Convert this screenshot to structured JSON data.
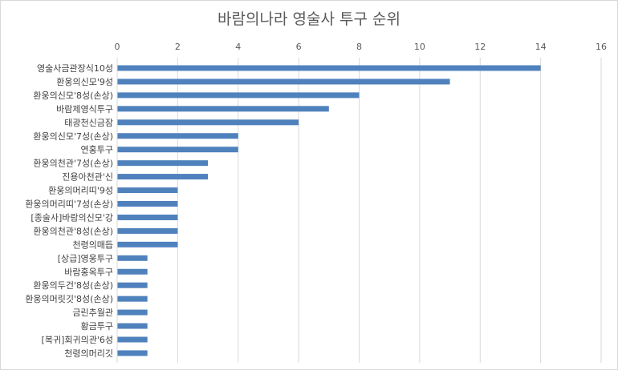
{
  "chart_data": {
    "type": "bar",
    "orientation": "horizontal",
    "title": "바람의나라 영술사 투구 순위",
    "x_axis_position": "top",
    "xlim": [
      0,
      16
    ],
    "x_ticks": [
      0,
      2,
      4,
      6,
      8,
      10,
      12,
      14,
      16
    ],
    "gridlines": true,
    "bar_color": "#4f81bd",
    "categories": [
      "영술사금관장식10성",
      "환웅의신모'9성",
      "환웅의신모'8성(손상)",
      "바람제영식투구",
      "태광천신금잠",
      "환웅의신모'7성(손상)",
      "연홍투구",
      "환웅의천관'7성(손상)",
      "진용아천관'신",
      "환웅의머리띠'9성",
      "환웅의머리띠'7성(손상)",
      "[종술사]바람의신모'강",
      "환웅의천관'8성(손상)",
      "천령의매듭",
      "[상급]영웅투구",
      "바람홍옥투구",
      "환웅의두건'8성(손상)",
      "환웅의머릿깃'8성(손상)",
      "금린추월관",
      "황금투구",
      "[복귀]회귀의관'6성",
      "천령의머리깃"
    ],
    "values": [
      14,
      11,
      8,
      7,
      6,
      4,
      4,
      3,
      3,
      2,
      2,
      2,
      2,
      2,
      1,
      1,
      1,
      1,
      1,
      1,
      1,
      1
    ]
  }
}
